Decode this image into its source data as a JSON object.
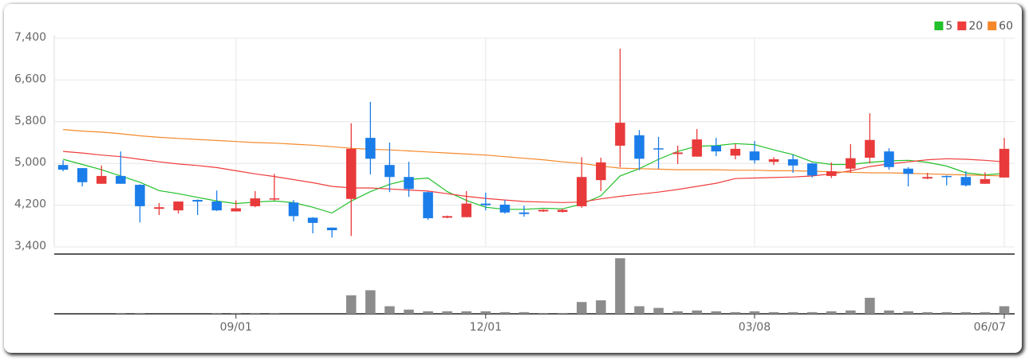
{
  "chart_data": {
    "type": "candlestick",
    "categories": [
      null,
      null,
      null,
      null,
      null,
      null,
      null,
      null,
      null,
      "09/01",
      null,
      null,
      null,
      null,
      null,
      null,
      null,
      null,
      null,
      null,
      null,
      null,
      "12/01",
      null,
      null,
      null,
      null,
      null,
      null,
      null,
      null,
      null,
      null,
      null,
      null,
      null,
      "03/08",
      null,
      null,
      null,
      null,
      null,
      null,
      null,
      null,
      null,
      null,
      null,
      null,
      "06/07"
    ],
    "ohlc": {
      "open": [
        4970,
        4910,
        4610,
        4760,
        4590,
        4130,
        4100,
        4300,
        4270,
        4080,
        4180,
        4310,
        4250,
        3960,
        3770,
        4320,
        5490,
        4970,
        4740,
        4450,
        3960,
        3970,
        4230,
        4210,
        4060,
        4080,
        4070,
        4180,
        4680,
        5340,
        5540,
        5290,
        5180,
        5130,
        5340,
        5150,
        5230,
        5030,
        5080,
        5000,
        4760,
        4900,
        5110,
        5230,
        4900,
        4710,
        4760,
        4740,
        4610,
        4730
      ],
      "high": [
        5060,
        4910,
        4960,
        5230,
        4600,
        4240,
        4270,
        4310,
        4480,
        4290,
        4470,
        4800,
        4300,
        3970,
        3770,
        5770,
        6180,
        5400,
        5030,
        4460,
        4000,
        4470,
        4440,
        4300,
        4190,
        4120,
        4130,
        5120,
        5110,
        7200,
        5640,
        5510,
        5340,
        5660,
        5490,
        5370,
        5430,
        5120,
        5170,
        5010,
        5020,
        5370,
        5960,
        5290,
        4930,
        4820,
        4770,
        4850,
        4830,
        5490
      ],
      "low": [
        4850,
        4560,
        4610,
        4610,
        3870,
        4010,
        4040,
        4010,
        4090,
        4080,
        4160,
        4290,
        3890,
        3660,
        3580,
        3610,
        4790,
        4450,
        4360,
        3920,
        3950,
        3970,
        4100,
        4040,
        3980,
        4070,
        4060,
        4150,
        4470,
        4930,
        4870,
        4900,
        4990,
        5130,
        5140,
        5080,
        5000,
        4970,
        4820,
        4730,
        4720,
        4820,
        5000,
        4880,
        4560,
        4700,
        4580,
        4560,
        4610,
        4730
      ],
      "close": [
        4880,
        4640,
        4760,
        4610,
        4180,
        4160,
        4270,
        4270,
        4100,
        4140,
        4330,
        4330,
        3990,
        3860,
        3720,
        5280,
        5090,
        4740,
        4510,
        3950,
        3990,
        4230,
        4200,
        4060,
        4030,
        4110,
        4110,
        4740,
        5020,
        5780,
        5090,
        5270,
        5210,
        5460,
        5230,
        5280,
        5060,
        5080,
        4960,
        4770,
        4850,
        5100,
        5450,
        4930,
        4800,
        4740,
        4740,
        4580,
        4700,
        5280
      ]
    },
    "up_color": "#e83a3a",
    "down_color": "#1b7de9",
    "series": [
      {
        "name": "5",
        "color": "#22c02a",
        "values": [
          5080,
          4980,
          4880,
          4760,
          4640,
          4480,
          4420,
          4350,
          4280,
          4230,
          4260,
          4280,
          4250,
          4160,
          4050,
          4280,
          4460,
          4600,
          4690,
          4720,
          4460,
          4290,
          4160,
          4120,
          4120,
          4140,
          4130,
          4220,
          4380,
          4760,
          4900,
          5080,
          5230,
          5330,
          5340,
          5380,
          5360,
          5260,
          5170,
          5030,
          4980,
          4980,
          5020,
          5050,
          5060,
          5020,
          4950,
          4820,
          4780,
          4810
        ]
      },
      {
        "name": "20",
        "color": "#f03c3c",
        "values": [
          5230,
          5200,
          5160,
          5130,
          5080,
          5030,
          4990,
          4960,
          4920,
          4860,
          4800,
          4750,
          4690,
          4630,
          4560,
          4530,
          4530,
          4510,
          4490,
          4470,
          4420,
          4370,
          4330,
          4300,
          4270,
          4260,
          4250,
          4260,
          4320,
          4370,
          4410,
          4450,
          4500,
          4560,
          4620,
          4710,
          4720,
          4730,
          4740,
          4760,
          4800,
          4860,
          4940,
          4990,
          5030,
          5070,
          5090,
          5080,
          5060,
          5030
        ]
      },
      {
        "name": "60",
        "color": "#f5882a",
        "values": [
          5650,
          5620,
          5600,
          5570,
          5530,
          5500,
          5480,
          5460,
          5440,
          5420,
          5400,
          5390,
          5370,
          5350,
          5320,
          5290,
          5270,
          5260,
          5240,
          5220,
          5200,
          5180,
          5160,
          5130,
          5100,
          5070,
          5030,
          5000,
          4950,
          4910,
          4900,
          4890,
          4880,
          4880,
          4880,
          4870,
          4870,
          4860,
          4860,
          4850,
          4840,
          4830,
          4820,
          4820,
          4810,
          4800,
          4790,
          4780,
          4770,
          4760
        ]
      }
    ],
    "volume": {
      "color": "#8c8c8c",
      "values": [
        0,
        0,
        0,
        1,
        1,
        0,
        0,
        0,
        1,
        1,
        1,
        1,
        0,
        0,
        0,
        22,
        28,
        9,
        5,
        3,
        3,
        3,
        3,
        2,
        2,
        1,
        1,
        14,
        16,
        66,
        9,
        7,
        3,
        4,
        3,
        2,
        3,
        2,
        2,
        2,
        3,
        4,
        19,
        4,
        3,
        2,
        2,
        2,
        2,
        9
      ]
    },
    "ylim": [
      3400,
      7400
    ],
    "yticks": [
      {
        "value": 3400,
        "label": "3,400"
      },
      {
        "value": 4200,
        "label": "4,200"
      },
      {
        "value": 5000,
        "label": "5,000"
      },
      {
        "value": 5800,
        "label": "5,800"
      },
      {
        "value": 6600,
        "label": "6,600"
      },
      {
        "value": 7400,
        "label": "7,400"
      }
    ],
    "y2lim": [
      0,
      70
    ],
    "grid": true,
    "legend": "top-right"
  }
}
